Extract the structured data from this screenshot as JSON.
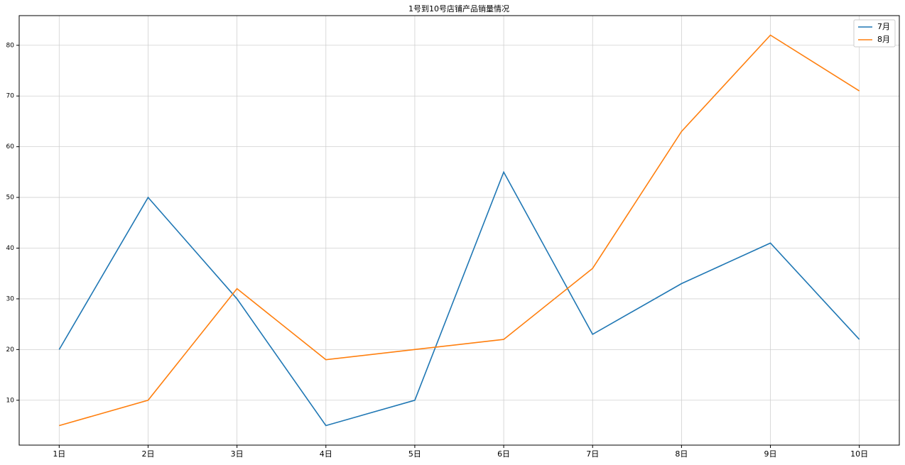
{
  "chart_data": {
    "type": "line",
    "title": "1号到10号店铺产品销量情况",
    "categories": [
      "1日",
      "2日",
      "3日",
      "4日",
      "5日",
      "6日",
      "7日",
      "8日",
      "9日",
      "10日"
    ],
    "series": [
      {
        "name": "7月",
        "color": "#1f77b4",
        "values": [
          20,
          50,
          30,
          5,
          10,
          55,
          23,
          33,
          41,
          22
        ]
      },
      {
        "name": "8月",
        "color": "#ff7f0e",
        "values": [
          5,
          10,
          32,
          18,
          20,
          22,
          36,
          63,
          82,
          71
        ]
      }
    ],
    "ylim": [
      1.15,
      85.85
    ],
    "yticks": [
      10,
      20,
      30,
      40,
      50,
      60,
      70,
      80
    ],
    "grid": true,
    "legend": "upper right"
  }
}
